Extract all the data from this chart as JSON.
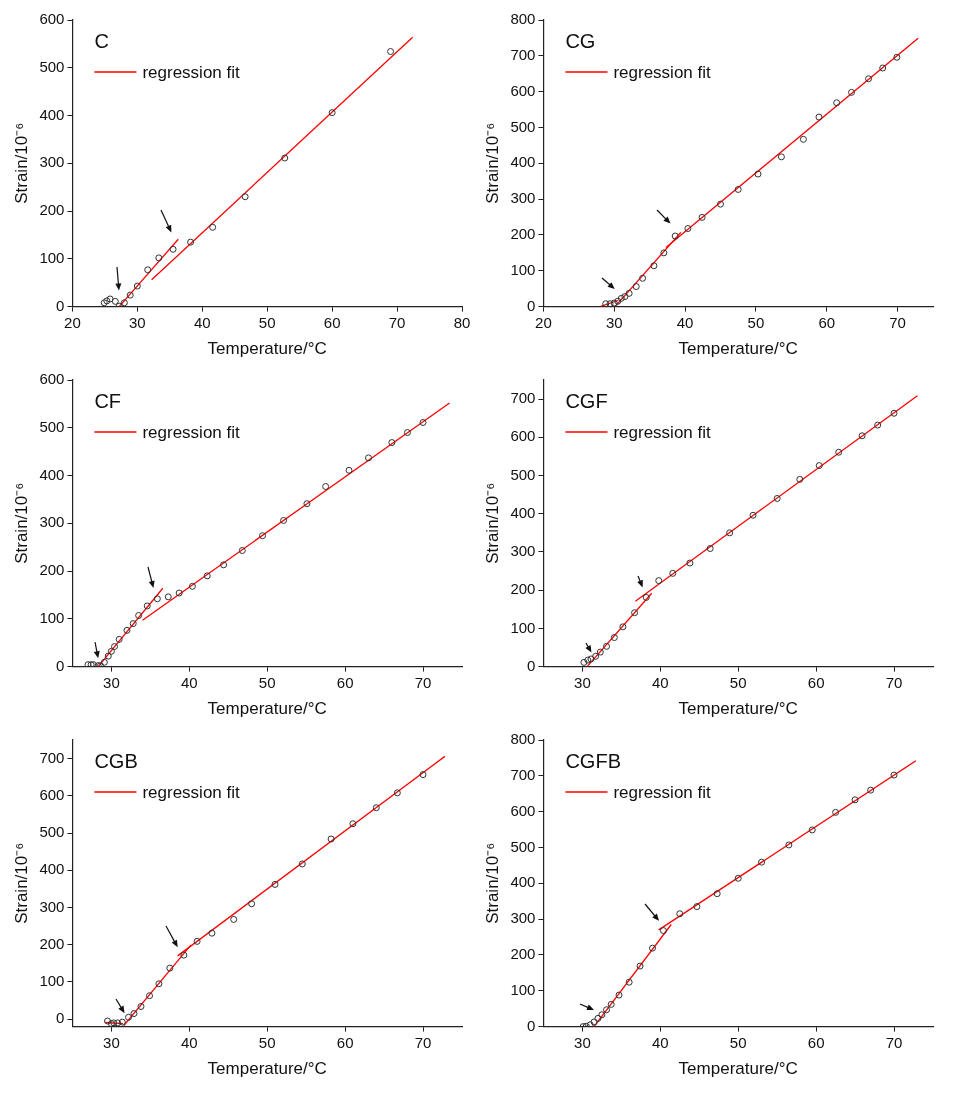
{
  "chart_data": [
    {
      "type": "scatter",
      "title": "C",
      "xlabel": "Temperature/°C",
      "ylabel": "Strain/10⁻⁶",
      "xlim": [
        20,
        80
      ],
      "ylim": [
        0,
        600
      ],
      "xticks": [
        20,
        30,
        40,
        50,
        60,
        70,
        80
      ],
      "yticks": [
        0,
        100,
        200,
        300,
        400,
        500,
        600
      ],
      "legend": "top left",
      "series": [
        {
          "color": "#333333",
          "marker": "circle",
          "x": [
            24.9,
            25.3,
            25.8,
            26.6,
            27.2,
            28.0,
            28.9,
            30.0,
            31.6,
            33.3,
            35.5,
            38.2,
            41.6,
            46.6,
            52.7,
            60.0,
            69.0
          ],
          "values": [
            8,
            12,
            16,
            11,
            1,
            8,
            24,
            43,
            77,
            102,
            120,
            135,
            166,
            230,
            311,
            406,
            534
          ]
        },
        {
          "type": "line",
          "name": "regression fit",
          "color": "#ff0000",
          "x": [
            27.2,
            36.3
          ],
          "values": [
            0,
            141
          ]
        },
        {
          "type": "line",
          "color": "#ff0000",
          "x": [
            32.2,
            72.4
          ],
          "values": [
            56,
            564
          ]
        }
      ]
    },
    {
      "type": "scatter",
      "title": "CG",
      "xlabel": "Temperature/°C",
      "ylabel": "Strain/10⁻⁶",
      "xlim": [
        20,
        75
      ],
      "ylim": [
        0,
        800
      ],
      "xticks": [
        20,
        30,
        40,
        50,
        60,
        70
      ],
      "yticks": [
        0,
        100,
        200,
        300,
        400,
        500,
        600,
        700,
        800
      ],
      "legend": "top left",
      "series": [
        {
          "color": "#333333",
          "marker": "circle",
          "x": [
            28.8,
            29.4,
            30.0,
            30.5,
            31.0,
            31.5,
            32.1,
            33.1,
            34.0,
            35.6,
            37.0,
            38.6,
            40.4,
            42.4,
            45.0,
            47.5,
            50.3,
            53.6,
            56.7,
            58.9,
            61.4,
            63.5,
            65.9,
            67.9,
            69.9
          ],
          "values": [
            8,
            8,
            10,
            15,
            23,
            28,
            37,
            56,
            79,
            114,
            150,
            197,
            218,
            249,
            286,
            327,
            370,
            418,
            467,
            529,
            569,
            598,
            636,
            666,
            696
          ]
        },
        {
          "type": "line",
          "name": "regression fit",
          "color": "#ff0000",
          "x": [
            28.0,
            30.5
          ],
          "values": [
            0,
            17
          ]
        },
        {
          "type": "line",
          "color": "#ff0000",
          "x": [
            30.1,
            39.4
          ],
          "values": [
            0,
            207
          ]
        },
        {
          "type": "line",
          "color": "#ff0000",
          "x": [
            37.3,
            72.9
          ],
          "values": [
            165,
            749
          ]
        }
      ]
    },
    {
      "type": "scatter",
      "title": "CF",
      "xlabel": "Temperature/°C",
      "ylabel": "Strain/10⁻⁶",
      "xlim": [
        25,
        75
      ],
      "ylim": [
        0,
        600
      ],
      "xticks": [
        30,
        40,
        50,
        60,
        70
      ],
      "yticks": [
        0,
        100,
        200,
        300,
        400,
        500,
        600
      ],
      "legend": "top left",
      "series": [
        {
          "color": "#333333",
          "marker": "circle",
          "x": [
            27.0,
            27.4,
            27.7,
            28.3,
            28.6,
            29.1,
            29.6,
            30.0,
            30.4,
            31.0,
            32.0,
            32.8,
            33.5,
            34.6,
            35.9,
            37.3,
            38.7,
            40.4,
            42.3,
            44.4,
            46.8,
            49.4,
            52.1,
            55.1,
            57.5,
            60.5,
            63.0,
            66.0,
            68.0,
            70.0
          ],
          "values": [
            4,
            4,
            4,
            2,
            2,
            9,
            22,
            32,
            42,
            57,
            76,
            90,
            107,
            127,
            142,
            146,
            154,
            168,
            190,
            213,
            243,
            274,
            306,
            341,
            377,
            411,
            437,
            469,
            490,
            511
          ]
        },
        {
          "type": "line",
          "name": "regression fit",
          "color": "#ff0000",
          "x": [
            28.3,
            36.6
          ],
          "values": [
            0,
            164
          ]
        },
        {
          "type": "line",
          "color": "#ff0000",
          "x": [
            34.0,
            73.4
          ],
          "values": [
            97,
            552
          ]
        }
      ]
    },
    {
      "type": "scatter",
      "title": "CGF",
      "xlabel": "Temperature/°C",
      "ylabel": "Strain/10⁻⁶",
      "xlim": [
        25,
        75
      ],
      "ylim": [
        0,
        750
      ],
      "xticks": [
        30,
        40,
        50,
        60,
        70
      ],
      "yticks": [
        0,
        100,
        200,
        300,
        400,
        500,
        600,
        700
      ],
      "legend": "top left",
      "series": [
        {
          "color": "#333333",
          "marker": "circle",
          "x": [
            30.2,
            30.7,
            31.1,
            31.7,
            32.3,
            33.1,
            34.1,
            35.2,
            36.7,
            38.2,
            39.8,
            41.6,
            43.8,
            46.4,
            48.9,
            51.9,
            55.0,
            57.9,
            60.4,
            62.9,
            65.9,
            67.9,
            70.0
          ],
          "values": [
            11,
            17,
            20,
            27,
            38,
            53,
            76,
            104,
            141,
            181,
            225,
            244,
            271,
            309,
            350,
            396,
            440,
            490,
            526,
            561,
            604,
            632,
            663
          ]
        },
        {
          "type": "line",
          "name": "regression fit",
          "color": "#ff0000",
          "x": [
            30.6,
            38.9
          ],
          "values": [
            0,
            192
          ]
        },
        {
          "type": "line",
          "color": "#ff0000",
          "x": [
            36.8,
            73.0
          ],
          "values": [
            171,
            709
          ]
        }
      ]
    },
    {
      "type": "scatter",
      "title": "CGB",
      "xlabel": "Temperature/°C",
      "ylabel": "Strain/10⁻⁶",
      "xlim": [
        25,
        75
      ],
      "ylim": [
        -20,
        750
      ],
      "xticks": [
        30,
        40,
        50,
        60,
        70
      ],
      "yticks": [
        0,
        100,
        200,
        300,
        400,
        500,
        600,
        700
      ],
      "legend": "top left",
      "series": [
        {
          "color": "#333333",
          "marker": "circle",
          "x": [
            29.5,
            30.0,
            30.3,
            30.8,
            31.4,
            32.2,
            32.9,
            33.8,
            34.9,
            36.1,
            37.5,
            39.3,
            41.0,
            42.9,
            45.7,
            48.0,
            51.0,
            54.5,
            58.2,
            61.0,
            64.0,
            66.7,
            70.0
          ],
          "values": [
            -5,
            -12,
            -10,
            -10,
            -8,
            5,
            15,
            34,
            63,
            95,
            137,
            172,
            209,
            231,
            268,
            310,
            362,
            417,
            484,
            525,
            568,
            608,
            657
          ]
        },
        {
          "type": "line",
          "name": "regression fit",
          "color": "#ff0000",
          "x": [
            29.2,
            31.5
          ],
          "values": [
            -9,
            -12
          ]
        },
        {
          "type": "line",
          "color": "#ff0000",
          "x": [
            31.6,
            40.2
          ],
          "values": [
            -17,
            199
          ]
        },
        {
          "type": "line",
          "color": "#ff0000",
          "x": [
            38.5,
            72.8
          ],
          "values": [
            170,
            706
          ]
        }
      ]
    },
    {
      "type": "scatter",
      "title": "CGFB",
      "xlabel": "Temperature/°C",
      "ylabel": "Strain/10⁻⁶",
      "xlim": [
        25,
        75
      ],
      "ylim": [
        0,
        800
      ],
      "xticks": [
        30,
        40,
        50,
        60,
        70
      ],
      "yticks": [
        0,
        100,
        200,
        300,
        400,
        500,
        600,
        700,
        800
      ],
      "legend": "top left",
      "series": [
        {
          "color": "#333333",
          "marker": "circle",
          "x": [
            30.1,
            30.5,
            31.0,
            31.5,
            32.0,
            32.5,
            33.1,
            33.7,
            34.7,
            36.0,
            37.4,
            39.0,
            40.4,
            42.5,
            44.7,
            47.3,
            50.0,
            53.0,
            56.5,
            59.5,
            62.5,
            65.0,
            67.0,
            70.0
          ],
          "values": [
            0,
            1,
            5,
            13,
            23,
            33,
            47,
            62,
            88,
            124,
            169,
            219,
            268,
            315,
            335,
            371,
            414,
            459,
            507,
            549,
            598,
            633,
            660,
            702
          ]
        },
        {
          "type": "line",
          "name": "regression fit",
          "color": "#ff0000",
          "x": [
            31.5,
            41.4
          ],
          "values": [
            0,
            285
          ]
        },
        {
          "type": "line",
          "color": "#ff0000",
          "x": [
            39.8,
            72.8
          ],
          "values": [
            270,
            742
          ]
        }
      ]
    }
  ]
}
